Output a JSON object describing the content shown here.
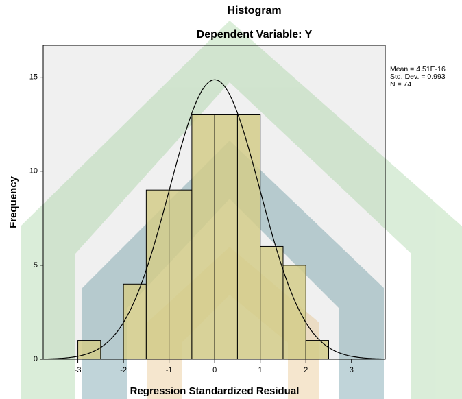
{
  "chart_data": {
    "type": "histogram",
    "title": "Histogram",
    "subtitle": "Dependent Variable: Y",
    "x_label": "Regression Standardized Residual",
    "y_label": "Frequency",
    "bins": [
      -3,
      -2.5,
      -2,
      -1.5,
      -1,
      -0.5,
      0,
      0.5,
      1,
      1.5,
      2,
      2.5
    ],
    "values": [
      1,
      0,
      4,
      9,
      9,
      13,
      13,
      13,
      6,
      5,
      1
    ],
    "color": "#d4cc8a",
    "xlim": [
      -3.76,
      3.74
    ],
    "ylim": [
      0,
      16.7
    ],
    "xticks": [
      -3,
      -2,
      -1,
      0,
      1,
      2,
      3
    ],
    "yticks": [
      0,
      5,
      10,
      15
    ],
    "normal_curve": [
      {
        "value": 4.51e-16,
        "label": "Mean = 4.51E-16"
      },
      {
        "value": 0.993,
        "label": "Std. Dev. = 0.993"
      },
      {
        "value": 74,
        "label": "N = 74"
      }
    ]
  }
}
